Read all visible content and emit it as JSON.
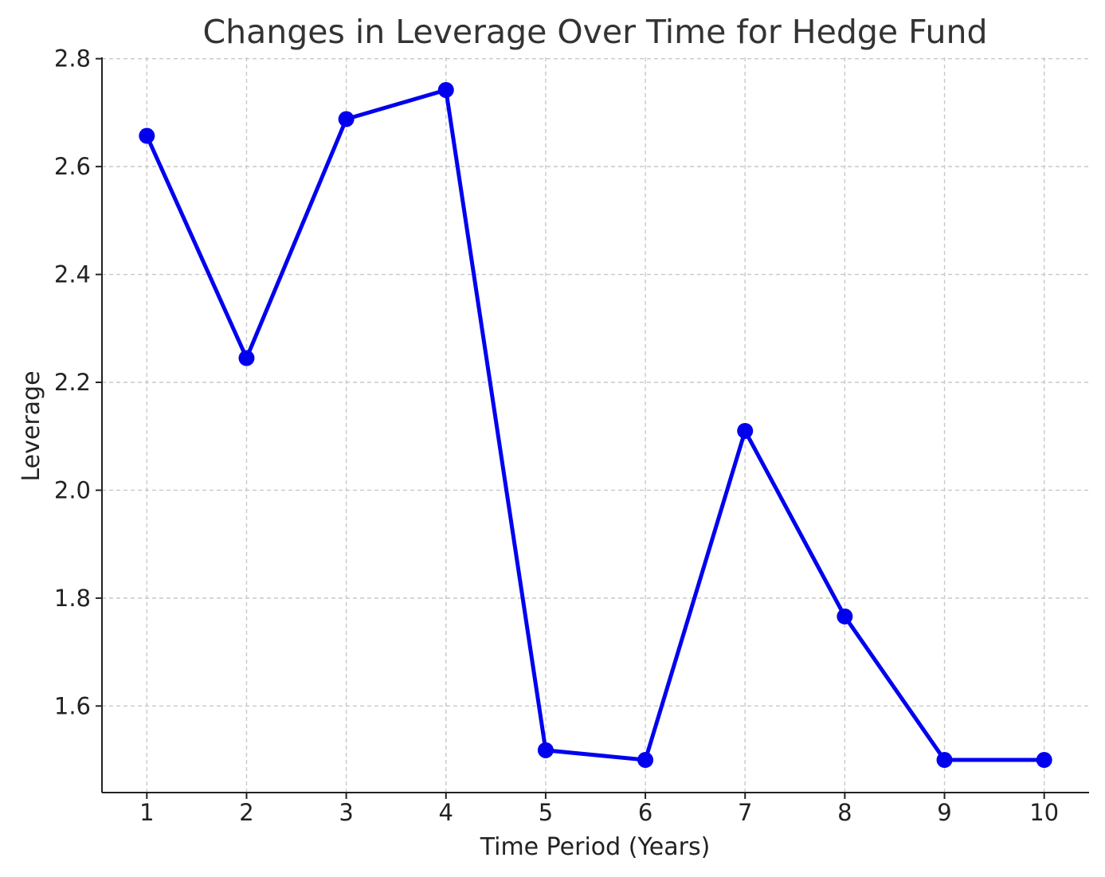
{
  "chart_data": {
    "type": "line",
    "title": "Changes in Leverage Over Time for Hedge Fund",
    "xlabel": "Time Period (Years)",
    "ylabel": "Leverage",
    "x": [
      1,
      2,
      3,
      4,
      5,
      6,
      7,
      8,
      9,
      10
    ],
    "x_tick_labels": [
      "1",
      "2",
      "3",
      "4",
      "5",
      "6",
      "7",
      "8",
      "9",
      "10"
    ],
    "y_tick_values": [
      1.6,
      1.8,
      2.0,
      2.2,
      2.4,
      2.6,
      2.8
    ],
    "y_tick_labels": [
      "1.6",
      "1.8",
      "2.0",
      "2.2",
      "2.4",
      "2.6",
      "2.8"
    ],
    "series": [
      {
        "values": [
          2.657,
          2.245,
          2.688,
          2.742,
          1.518,
          1.5,
          2.11,
          1.766,
          1.5,
          1.5
        ],
        "color": "#0000ee",
        "marker": "circle"
      }
    ],
    "xlim": [
      0.55,
      10.45
    ],
    "ylim": [
      1.4395,
      2.8025
    ],
    "grid": true,
    "legend": "none"
  }
}
